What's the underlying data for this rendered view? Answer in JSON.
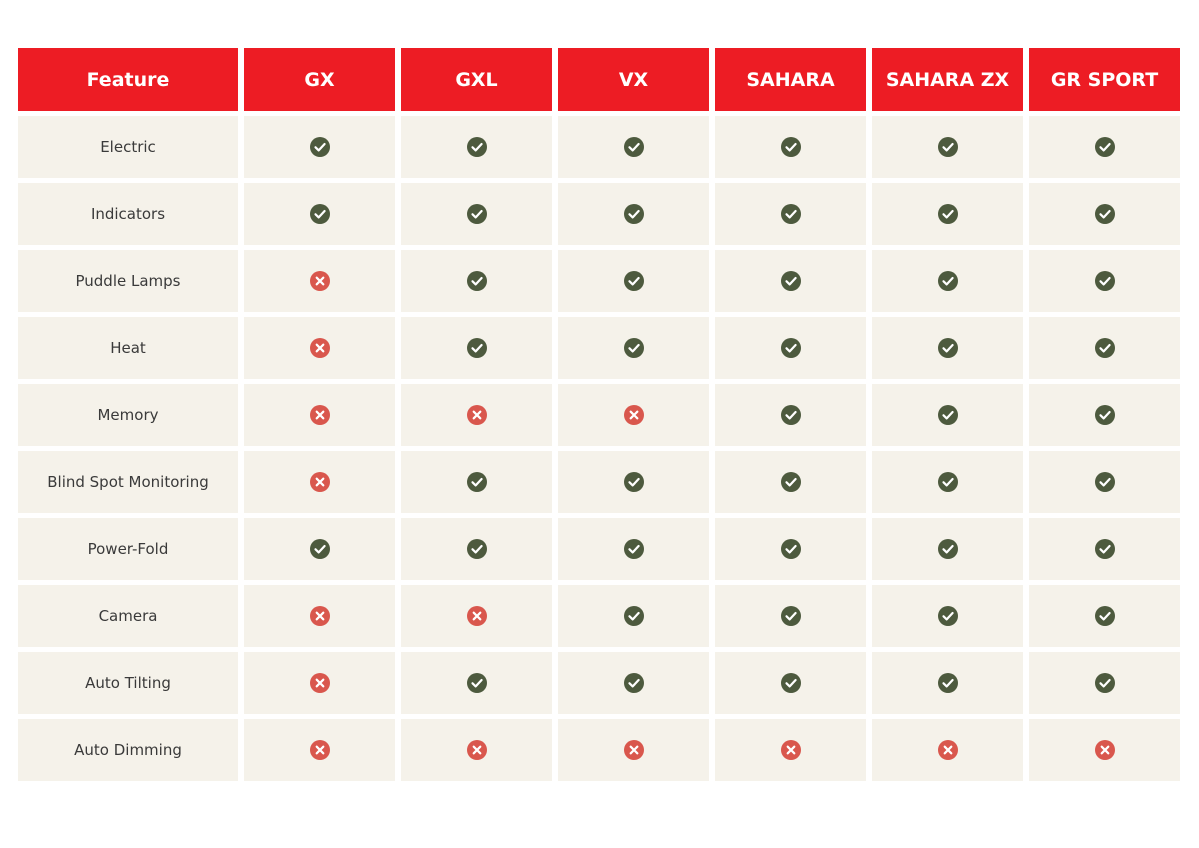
{
  "table": {
    "header": [
      "Feature",
      "GX",
      "GXL",
      "VX",
      "SAHARA",
      "SAHARA ZX",
      "GR SPORT"
    ],
    "rows": [
      [
        "Electric",
        true,
        true,
        true,
        true,
        true,
        true
      ],
      [
        "Indicators",
        true,
        true,
        true,
        true,
        true,
        true
      ],
      [
        "Puddle Lamps",
        false,
        true,
        true,
        true,
        true,
        true
      ],
      [
        "Heat",
        false,
        true,
        true,
        true,
        true,
        true
      ],
      [
        "Memory",
        false,
        false,
        false,
        true,
        true,
        true
      ],
      [
        "Blind Spot Monitoring",
        false,
        true,
        true,
        true,
        true,
        true
      ],
      [
        "Power-Fold",
        true,
        true,
        true,
        true,
        true,
        true
      ],
      [
        "Camera",
        false,
        false,
        true,
        true,
        true,
        true
      ],
      [
        "Auto Tilting",
        false,
        true,
        true,
        true,
        true,
        true
      ],
      [
        "Auto Dimming",
        false,
        false,
        false,
        false,
        false,
        false
      ]
    ]
  }
}
